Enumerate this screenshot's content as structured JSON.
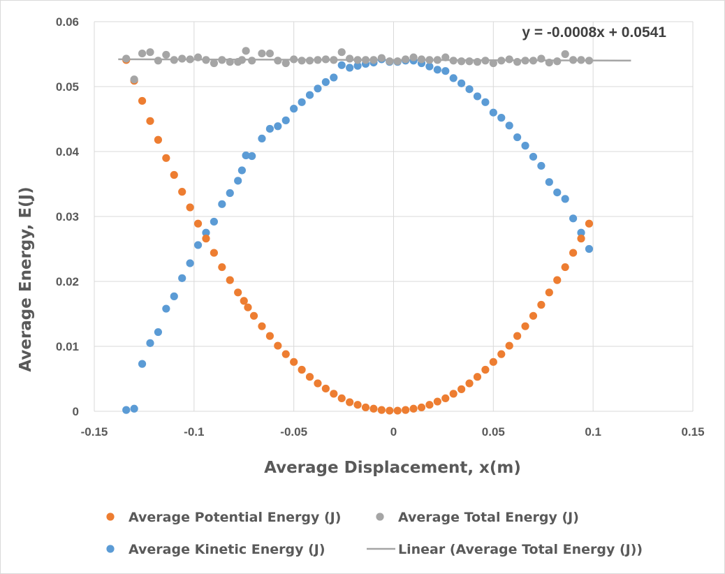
{
  "chart_data": {
    "type": "scatter",
    "xlabel": "Average Displacement, x(m)",
    "ylabel": "Average Energy, E(J)",
    "xlim": [
      -0.15,
      0.15
    ],
    "ylim": [
      0,
      0.06
    ],
    "x_ticks": [
      "-0.15",
      "-0.1",
      "-0.05",
      "0",
      "0.05",
      "0.1",
      "0.15"
    ],
    "y_ticks": [
      "0",
      "0.01",
      "0.02",
      "0.03",
      "0.04",
      "0.05",
      "0.06"
    ],
    "grid": true,
    "legend_position": "bottom",
    "series": [
      {
        "name": "Average Potential Energy (J)",
        "color": "#ed7d31",
        "marker": "circle",
        "points": [
          [
            -0.134,
            0.0541
          ],
          [
            -0.13,
            0.0509
          ],
          [
            -0.126,
            0.0478
          ],
          [
            -0.122,
            0.0447
          ],
          [
            -0.118,
            0.0418
          ],
          [
            -0.114,
            0.039
          ],
          [
            -0.11,
            0.0364
          ],
          [
            -0.106,
            0.0338
          ],
          [
            -0.102,
            0.0314
          ],
          [
            -0.098,
            0.0289
          ],
          [
            -0.094,
            0.0266
          ],
          [
            -0.09,
            0.0244
          ],
          [
            -0.086,
            0.0222
          ],
          [
            -0.082,
            0.0202
          ],
          [
            -0.078,
            0.0183
          ],
          [
            -0.075,
            0.017
          ],
          [
            -0.073,
            0.016
          ],
          [
            -0.07,
            0.0147
          ],
          [
            -0.066,
            0.0131
          ],
          [
            -0.062,
            0.0116
          ],
          [
            -0.058,
            0.0101
          ],
          [
            -0.054,
            0.0088
          ],
          [
            -0.05,
            0.0076
          ],
          [
            -0.046,
            0.0064
          ],
          [
            -0.042,
            0.0053
          ],
          [
            -0.038,
            0.0043
          ],
          [
            -0.034,
            0.0035
          ],
          [
            -0.03,
            0.0027
          ],
          [
            -0.026,
            0.002
          ],
          [
            -0.022,
            0.0014
          ],
          [
            -0.018,
            0.001
          ],
          [
            -0.014,
            0.0006
          ],
          [
            -0.01,
            0.0004
          ],
          [
            -0.006,
            0.0002
          ],
          [
            -0.002,
            0.0001
          ],
          [
            0.002,
            0.0001
          ],
          [
            0.006,
            0.0002
          ],
          [
            0.01,
            0.0004
          ],
          [
            0.014,
            0.0006
          ],
          [
            0.018,
            0.001
          ],
          [
            0.022,
            0.0015
          ],
          [
            0.026,
            0.002
          ],
          [
            0.03,
            0.0027
          ],
          [
            0.034,
            0.0034
          ],
          [
            0.038,
            0.0043
          ],
          [
            0.042,
            0.0053
          ],
          [
            0.046,
            0.0064
          ],
          [
            0.05,
            0.0076
          ],
          [
            0.054,
            0.0088
          ],
          [
            0.058,
            0.0101
          ],
          [
            0.062,
            0.0116
          ],
          [
            0.066,
            0.0131
          ],
          [
            0.07,
            0.0147
          ],
          [
            0.074,
            0.0164
          ],
          [
            0.078,
            0.0183
          ],
          [
            0.082,
            0.0202
          ],
          [
            0.086,
            0.0222
          ],
          [
            0.09,
            0.0244
          ],
          [
            0.094,
            0.0266
          ],
          [
            0.098,
            0.0289
          ]
        ]
      },
      {
        "name": "Average Kinetic Energy (J)",
        "color": "#5b9bd5",
        "marker": "circle",
        "points": [
          [
            -0.134,
            0.0002
          ],
          [
            -0.13,
            0.0004
          ],
          [
            -0.126,
            0.0073
          ],
          [
            -0.122,
            0.0105
          ],
          [
            -0.118,
            0.0122
          ],
          [
            -0.114,
            0.0158
          ],
          [
            -0.11,
            0.0177
          ],
          [
            -0.106,
            0.0205
          ],
          [
            -0.102,
            0.0228
          ],
          [
            -0.098,
            0.0256
          ],
          [
            -0.094,
            0.0275
          ],
          [
            -0.09,
            0.0292
          ],
          [
            -0.086,
            0.0319
          ],
          [
            -0.082,
            0.0336
          ],
          [
            -0.078,
            0.0355
          ],
          [
            -0.076,
            0.0371
          ],
          [
            -0.074,
            0.0394
          ],
          [
            -0.071,
            0.0393
          ],
          [
            -0.066,
            0.042
          ],
          [
            -0.062,
            0.0435
          ],
          [
            -0.058,
            0.0439
          ],
          [
            -0.054,
            0.0448
          ],
          [
            -0.05,
            0.0466
          ],
          [
            -0.046,
            0.0476
          ],
          [
            -0.042,
            0.0487
          ],
          [
            -0.038,
            0.0497
          ],
          [
            -0.034,
            0.0507
          ],
          [
            -0.03,
            0.0514
          ],
          [
            -0.026,
            0.0533
          ],
          [
            -0.022,
            0.0529
          ],
          [
            -0.018,
            0.0532
          ],
          [
            -0.014,
            0.0535
          ],
          [
            -0.01,
            0.0537
          ],
          [
            -0.006,
            0.0542
          ],
          [
            -0.002,
            0.0538
          ],
          [
            0.002,
            0.0538
          ],
          [
            0.006,
            0.054
          ],
          [
            0.01,
            0.054
          ],
          [
            0.014,
            0.0536
          ],
          [
            0.018,
            0.0531
          ],
          [
            0.022,
            0.0526
          ],
          [
            0.026,
            0.0524
          ],
          [
            0.03,
            0.0513
          ],
          [
            0.034,
            0.0505
          ],
          [
            0.038,
            0.0496
          ],
          [
            0.042,
            0.0485
          ],
          [
            0.046,
            0.0476
          ],
          [
            0.05,
            0.046
          ],
          [
            0.054,
            0.0452
          ],
          [
            0.058,
            0.044
          ],
          [
            0.062,
            0.0422
          ],
          [
            0.066,
            0.0409
          ],
          [
            0.07,
            0.0392
          ],
          [
            0.074,
            0.0378
          ],
          [
            0.078,
            0.0353
          ],
          [
            0.082,
            0.0337
          ],
          [
            0.086,
            0.0327
          ],
          [
            0.09,
            0.0297
          ],
          [
            0.094,
            0.0275
          ],
          [
            0.098,
            0.025
          ]
        ]
      },
      {
        "name": "Average Total Energy (J)",
        "color": "#a5a5a5",
        "marker": "circle",
        "points": [
          [
            -0.134,
            0.0543
          ],
          [
            -0.13,
            0.0511
          ],
          [
            -0.126,
            0.0551
          ],
          [
            -0.122,
            0.0553
          ],
          [
            -0.118,
            0.054
          ],
          [
            -0.114,
            0.0549
          ],
          [
            -0.11,
            0.0541
          ],
          [
            -0.106,
            0.0543
          ],
          [
            -0.102,
            0.0542
          ],
          [
            -0.098,
            0.0545
          ],
          [
            -0.094,
            0.0541
          ],
          [
            -0.09,
            0.0536
          ],
          [
            -0.086,
            0.0541
          ],
          [
            -0.082,
            0.0538
          ],
          [
            -0.078,
            0.0538
          ],
          [
            -0.076,
            0.0541
          ],
          [
            -0.074,
            0.0555
          ],
          [
            -0.071,
            0.054
          ],
          [
            -0.066,
            0.0551
          ],
          [
            -0.062,
            0.0551
          ],
          [
            -0.058,
            0.054
          ],
          [
            -0.054,
            0.0536
          ],
          [
            -0.05,
            0.0542
          ],
          [
            -0.046,
            0.054
          ],
          [
            -0.042,
            0.054
          ],
          [
            -0.038,
            0.0541
          ],
          [
            -0.034,
            0.0542
          ],
          [
            -0.03,
            0.0541
          ],
          [
            -0.026,
            0.0553
          ],
          [
            -0.022,
            0.0543
          ],
          [
            -0.018,
            0.0541
          ],
          [
            -0.014,
            0.0541
          ],
          [
            -0.01,
            0.0541
          ],
          [
            -0.006,
            0.0544
          ],
          [
            -0.002,
            0.0539
          ],
          [
            0.002,
            0.0539
          ],
          [
            0.006,
            0.0542
          ],
          [
            0.01,
            0.0545
          ],
          [
            0.014,
            0.0542
          ],
          [
            0.018,
            0.0541
          ],
          [
            0.022,
            0.0541
          ],
          [
            0.026,
            0.0545
          ],
          [
            0.03,
            0.054
          ],
          [
            0.034,
            0.0539
          ],
          [
            0.038,
            0.0539
          ],
          [
            0.042,
            0.0538
          ],
          [
            0.046,
            0.054
          ],
          [
            0.05,
            0.0536
          ],
          [
            0.054,
            0.054
          ],
          [
            0.058,
            0.0542
          ],
          [
            0.062,
            0.0538
          ],
          [
            0.066,
            0.054
          ],
          [
            0.07,
            0.054
          ],
          [
            0.074,
            0.0543
          ],
          [
            0.078,
            0.0537
          ],
          [
            0.082,
            0.0539
          ],
          [
            0.086,
            0.055
          ],
          [
            0.09,
            0.0541
          ],
          [
            0.094,
            0.0541
          ],
          [
            0.098,
            0.054
          ]
        ]
      }
    ],
    "trendline": {
      "name": "Linear  (Average Total Energy (J))",
      "equation": "y = -0.0008x + 0.0541",
      "slope": -0.0008,
      "intercept": 0.0541,
      "x_range": [
        -0.138,
        0.119
      ],
      "color": "#a5a5a5"
    },
    "legend_items": [
      {
        "label": "Average Potential Energy (J)",
        "color": "#ed7d31",
        "kind": "marker"
      },
      {
        "label": "Average Total Energy (J)",
        "color": "#a5a5a5",
        "kind": "marker"
      },
      {
        "label": "Average Kinetic Energy (J)",
        "color": "#5b9bd5",
        "kind": "marker"
      },
      {
        "label": "Linear  (Average Total Energy (J))",
        "color": "#a5a5a5",
        "kind": "line"
      }
    ]
  }
}
